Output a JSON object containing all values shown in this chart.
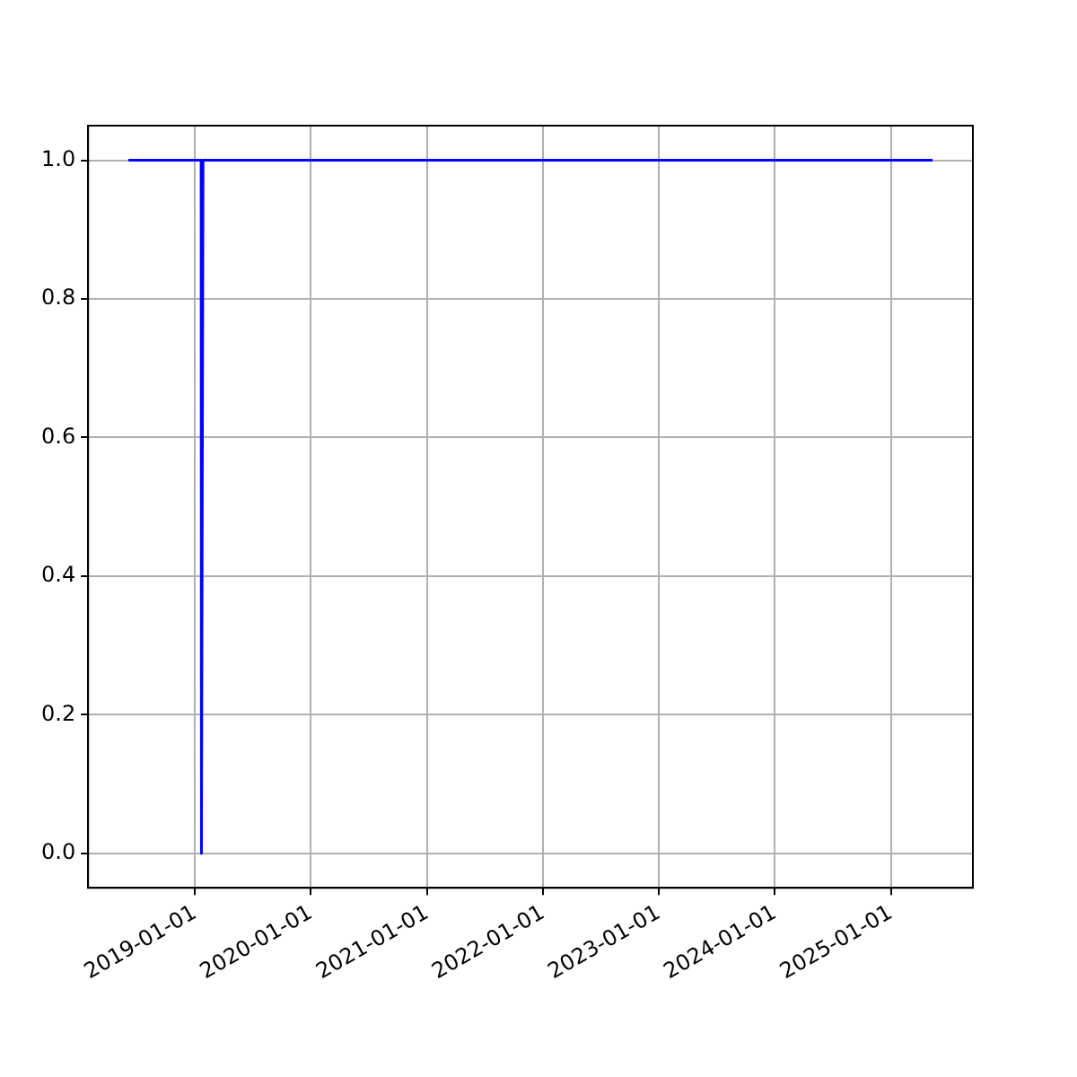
{
  "chart_data": {
    "type": "line",
    "x": [
      "2018-06-05",
      "2019-01-20",
      "2019-01-21",
      "2019-01-26",
      "2025-05-12"
    ],
    "series": [
      {
        "color": "#0000ff",
        "values": [
          1,
          1,
          0,
          1,
          1
        ]
      }
    ],
    "xlim": [
      "2018-01-29",
      "2025-09-16"
    ],
    "xticks": [
      "2019-01-01",
      "2020-01-01",
      "2021-01-01",
      "2022-01-01",
      "2023-01-01",
      "2024-01-01",
      "2025-01-01"
    ],
    "ylim": [
      -0.05,
      1.05
    ],
    "yticks": [
      {
        "value": 0,
        "label": "0.0"
      },
      {
        "value": 0.2,
        "label": "0.2"
      },
      {
        "value": 0.4,
        "label": "0.4"
      },
      {
        "value": 0.6,
        "label": "0.6"
      },
      {
        "value": 0.8,
        "label": "0.8"
      },
      {
        "value": 1,
        "label": "1.0"
      }
    ],
    "grid": true,
    "legend": false,
    "marker": "none",
    "line_style": "solid"
  }
}
